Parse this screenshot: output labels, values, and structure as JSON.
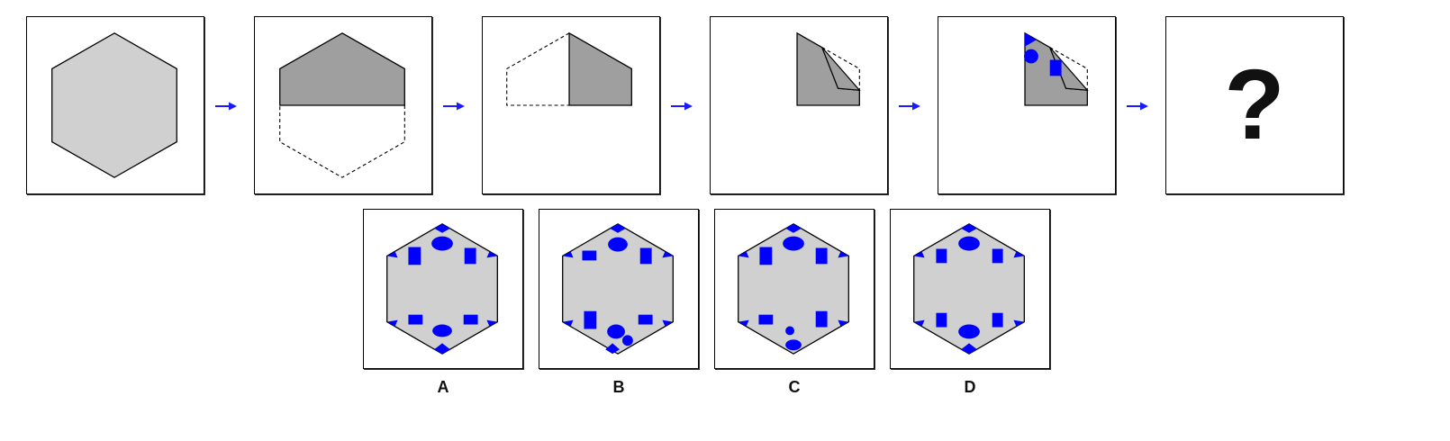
{
  "question_mark": "?",
  "options": [
    {
      "label": "A"
    },
    {
      "label": "B"
    },
    {
      "label": "C"
    },
    {
      "label": "D"
    }
  ],
  "colors": {
    "light_fill": "#d0d0d0",
    "dark_fill": "#9f9f9f",
    "mark": "#0000ff",
    "arrow": "#1a1aff",
    "outline": "#000000"
  }
}
